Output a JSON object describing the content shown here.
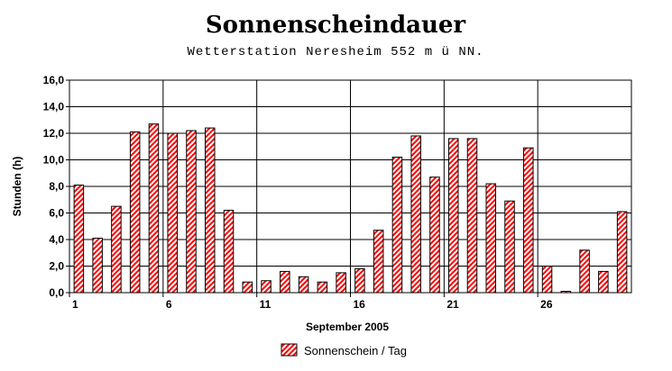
{
  "chart_data": {
    "type": "bar",
    "title": "Sonnenscheindauer",
    "subtitle": "Wetterstation Neresheim 552 m ü NN.",
    "xlabel": "September 2005",
    "ylabel": "Stunden (h)",
    "ylim": [
      0,
      16
    ],
    "yticks": [
      "0,0",
      "2,0",
      "4,0",
      "6,0",
      "8,0",
      "10,0",
      "12,0",
      "14,0",
      "16,0"
    ],
    "xticks": [
      {
        "day": 1,
        "label": "1"
      },
      {
        "day": 6,
        "label": "6"
      },
      {
        "day": 11,
        "label": "11"
      },
      {
        "day": 16,
        "label": "16"
      },
      {
        "day": 21,
        "label": "21"
      },
      {
        "day": 26,
        "label": "26"
      }
    ],
    "grid": true,
    "legend_position": "bottom-center",
    "series": [
      {
        "name": "Sonnenschein / Tag",
        "color": "#ff0000",
        "days": [
          1,
          2,
          3,
          4,
          5,
          6,
          7,
          8,
          9,
          10,
          11,
          12,
          13,
          14,
          15,
          16,
          17,
          18,
          19,
          20,
          21,
          22,
          23,
          24,
          25,
          26,
          27,
          28,
          29,
          30
        ],
        "values": [
          8.1,
          4.1,
          6.5,
          12.1,
          12.7,
          12.0,
          12.2,
          12.4,
          6.2,
          0.8,
          0.9,
          1.6,
          1.2,
          0.8,
          1.5,
          1.8,
          4.7,
          10.2,
          11.8,
          8.7,
          11.6,
          11.6,
          8.2,
          6.9,
          10.9,
          2.0,
          0.1,
          3.2,
          1.6,
          6.1
        ]
      }
    ]
  }
}
